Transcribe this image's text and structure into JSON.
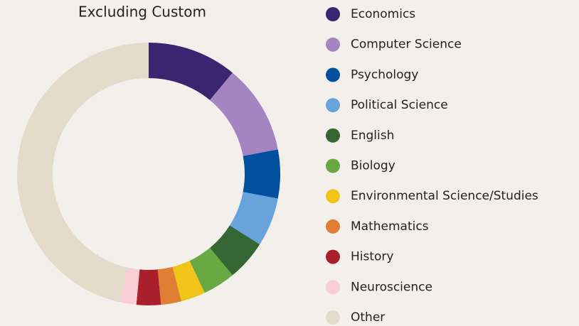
{
  "chart_data": {
    "type": "donut",
    "title": "Excluding Custom",
    "categories": [
      "Economics",
      "Computer Science",
      "Psychology",
      "Political Science",
      "English",
      "Biology",
      "Environmental Science/Studies",
      "Mathematics",
      "History",
      "Neuroscience",
      "Other"
    ],
    "values": [
      11,
      11,
      6,
      6,
      5,
      4,
      3,
      2.5,
      3,
      2,
      46.5
    ],
    "colors": [
      "#3b2570",
      "#a585c1",
      "#00509e",
      "#68a3db",
      "#336633",
      "#6aa843",
      "#f0c419",
      "#e07f33",
      "#a91f2b",
      "#f8cdd4",
      "#e3dccb"
    ]
  }
}
